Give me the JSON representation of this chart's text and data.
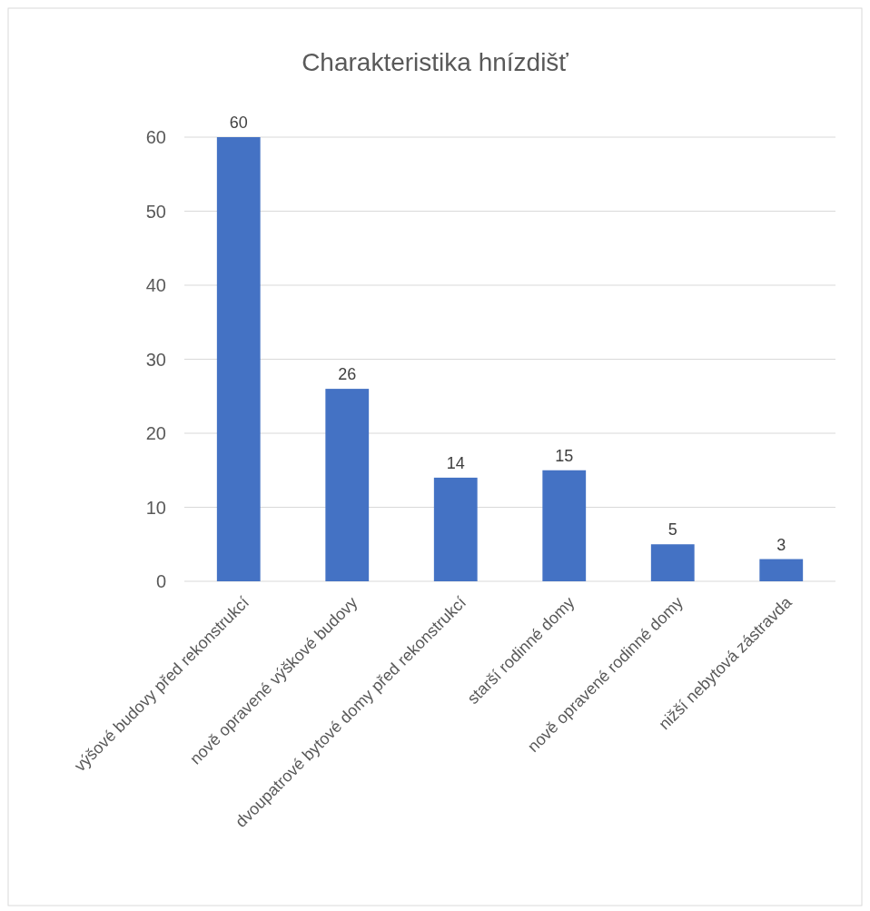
{
  "chart_data": {
    "type": "bar",
    "title": "Charakteristika hnízdišť",
    "categories": [
      "výšové budovy před rekonstrukcí",
      "nově opravené výškové budovy",
      "dvoupatrové bytové domy před rekonstrukcí",
      "starší rodinné domy",
      "nově opravené rodinné domy",
      "nižší nebytová zástravda"
    ],
    "values": [
      60,
      26,
      14,
      15,
      5,
      3
    ],
    "color": "#4472c4",
    "ylim": [
      0,
      60
    ],
    "yticks": [
      0,
      10,
      20,
      30,
      40,
      50,
      60
    ],
    "grid": "y",
    "data_labels": true
  }
}
